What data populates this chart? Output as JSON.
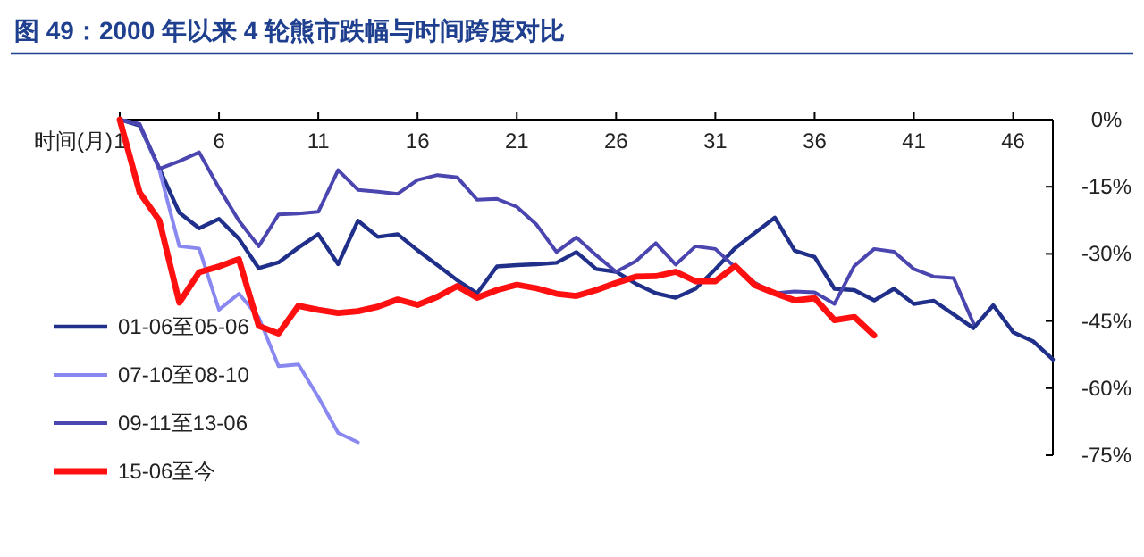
{
  "chart_data": {
    "type": "line",
    "title": "图 49：2000 年以来 4 轮熊市跌幅与时间跨度对比",
    "xlabel": "时间(月)",
    "xlim": [
      1,
      48
    ],
    "xticks": [
      1,
      6,
      11,
      16,
      21,
      26,
      31,
      36,
      41,
      46
    ],
    "ylim": [
      -75,
      0
    ],
    "yticks": [
      {
        "value": 0,
        "label": "0%"
      },
      {
        "value": -15,
        "label": "-15%"
      },
      {
        "value": -30,
        "label": "-30%"
      },
      {
        "value": -45,
        "label": "-45%"
      },
      {
        "value": -60,
        "label": "-60%"
      },
      {
        "value": -75,
        "label": "-75%"
      }
    ],
    "legend": "bottom left",
    "grid": false,
    "series": [
      {
        "name": "01-06至05-06",
        "color": "#1f2f8a",
        "x": [
          1,
          2,
          3,
          4,
          5,
          6,
          7,
          8,
          9,
          10,
          11,
          12,
          13,
          14,
          15,
          16,
          17,
          18,
          19,
          20,
          21,
          22,
          23,
          24,
          25,
          26,
          27,
          28,
          29,
          30,
          31,
          32,
          33,
          34,
          35,
          36,
          37,
          38,
          39,
          40,
          41,
          42,
          43,
          44,
          45,
          46,
          47,
          48
        ],
        "values": [
          0,
          -1.3,
          -11,
          -20.8,
          -24.3,
          -22.2,
          -26.6,
          -33.2,
          -31.9,
          -28.6,
          -25.6,
          -32.3,
          -22.6,
          -26.2,
          -25.6,
          -29.2,
          -32.5,
          -35.9,
          -38.8,
          -32.8,
          -32.5,
          -32.3,
          -32,
          -29.6,
          -33.4,
          -34,
          -36.7,
          -38.8,
          -39.8,
          -37.8,
          -33.4,
          -28.7,
          -25.3,
          -21.9,
          -29.3,
          -30.7,
          -37.8,
          -38.1,
          -40.4,
          -37.8,
          -41.2,
          -40.5,
          -43.5,
          -46.6,
          -41.5,
          -47.5,
          -49.5,
          -53.6
        ]
      },
      {
        "name": "07-10至08-10",
        "color": "#8888f0",
        "x": [
          1,
          2,
          3,
          4,
          5,
          6,
          7,
          8,
          9,
          10,
          11,
          12,
          13
        ],
        "values": [
          0,
          -1,
          -11.3,
          -28.3,
          -28.8,
          -42.5,
          -38.9,
          -44.2,
          -55.1,
          -54.7,
          -62,
          -70,
          -72.1
        ]
      },
      {
        "name": "09-11至13-06",
        "color": "#4b45b0",
        "x": [
          1,
          2,
          3,
          4,
          5,
          6,
          7,
          8,
          9,
          10,
          11,
          12,
          13,
          14,
          15,
          16,
          17,
          18,
          19,
          20,
          21,
          22,
          23,
          24,
          25,
          26,
          27,
          28,
          29,
          30,
          31,
          32,
          33,
          34,
          35,
          36,
          37,
          38,
          39,
          40,
          41,
          42,
          43,
          44
        ],
        "values": [
          0,
          -1,
          -11,
          -9.3,
          -7.3,
          -15.3,
          -22.6,
          -28.3,
          -21.2,
          -21,
          -20.6,
          -11.3,
          -15.7,
          -16.1,
          -16.6,
          -13.5,
          -12.4,
          -12.9,
          -17.9,
          -17.7,
          -19.5,
          -23.5,
          -29.6,
          -26.3,
          -30.3,
          -34,
          -31.6,
          -27.6,
          -32.4,
          -28.3,
          -28.9,
          -33,
          -36.5,
          -38.8,
          -38.4,
          -38.6,
          -41.2,
          -32.7,
          -28.9,
          -29.5,
          -33.4,
          -35.1,
          -35.4,
          -45.5
        ]
      },
      {
        "name": "15-06至今",
        "color": "#ff1010",
        "x": [
          1,
          2,
          3,
          4,
          5,
          6,
          7,
          8,
          9,
          10,
          11,
          12,
          13,
          14,
          15,
          16,
          17,
          18,
          19,
          20,
          21,
          22,
          23,
          24,
          25,
          26,
          27,
          28,
          29,
          30,
          31,
          32,
          33,
          34,
          35,
          36,
          37,
          38,
          39
        ],
        "values": [
          0,
          -16.3,
          -22.6,
          -40.9,
          -34.1,
          -32.8,
          -31.2,
          -46.1,
          -47.8,
          -41.6,
          -42.5,
          -43.2,
          -42.8,
          -41.8,
          -40.2,
          -41.4,
          -39.6,
          -37.2,
          -39.8,
          -38.1,
          -36.9,
          -37.7,
          -38.9,
          -39.4,
          -38.1,
          -36.5,
          -35.1,
          -35,
          -34,
          -36.1,
          -36.1,
          -32.7,
          -37,
          -38.8,
          -40.4,
          -39.9,
          -44.8,
          -44.1,
          -48.2
        ]
      }
    ]
  }
}
